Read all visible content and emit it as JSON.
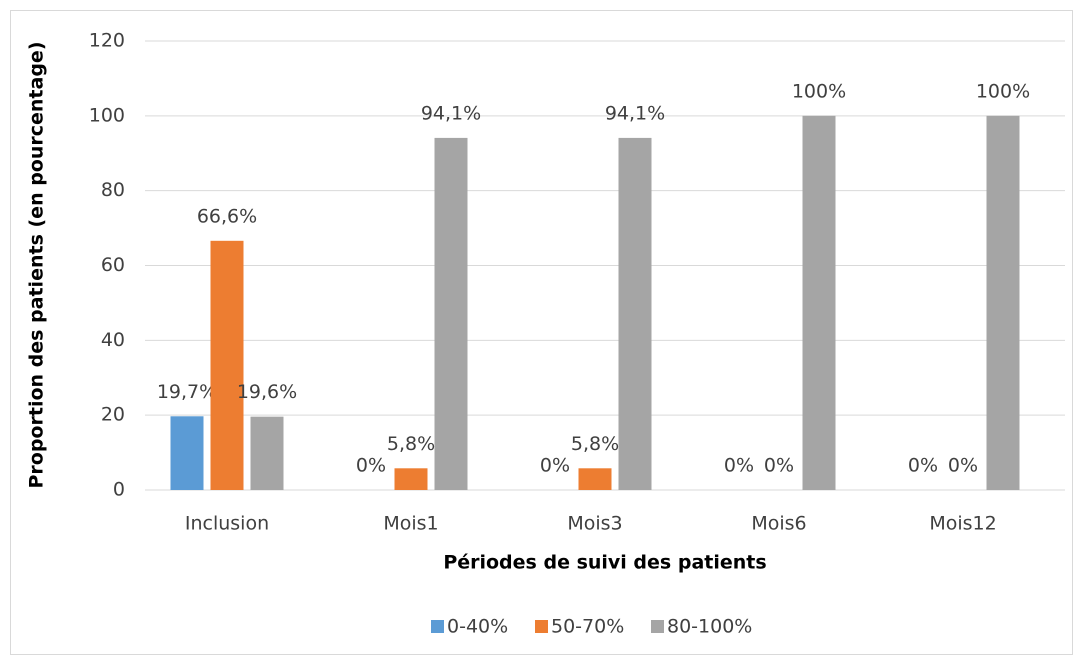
{
  "chart_data": {
    "type": "bar",
    "x_label": "Périodes de suivi des patients",
    "y_label": "Proportion des patients (en pourcentage)",
    "categories": [
      "Inclusion",
      "Mois1",
      "Mois3",
      "Mois6",
      "Mois12"
    ],
    "series": [
      {
        "name": "0-40%",
        "color": "#5b9bd5",
        "values": [
          19.7,
          0,
          0,
          0,
          0
        ],
        "value_labels": [
          "19,7%",
          "0%",
          "0%",
          "0%",
          "0%"
        ]
      },
      {
        "name": "50-70%",
        "color": "#ed7d31",
        "values": [
          66.6,
          5.8,
          5.8,
          0,
          0
        ],
        "value_labels": [
          "66,6%",
          "5,8%",
          "5,8%",
          "0%",
          "0%"
        ]
      },
      {
        "name": "80-100%",
        "color": "#a5a5a5",
        "values": [
          19.6,
          94.1,
          94.1,
          100,
          100
        ],
        "value_labels": [
          "19,6%",
          "94,1%",
          "94,1%",
          "100%",
          "100%"
        ]
      }
    ],
    "ylim": [
      0,
      120
    ],
    "yticks": [
      0,
      20,
      40,
      60,
      80,
      100,
      120
    ],
    "grid": true,
    "legend": "bottom"
  }
}
